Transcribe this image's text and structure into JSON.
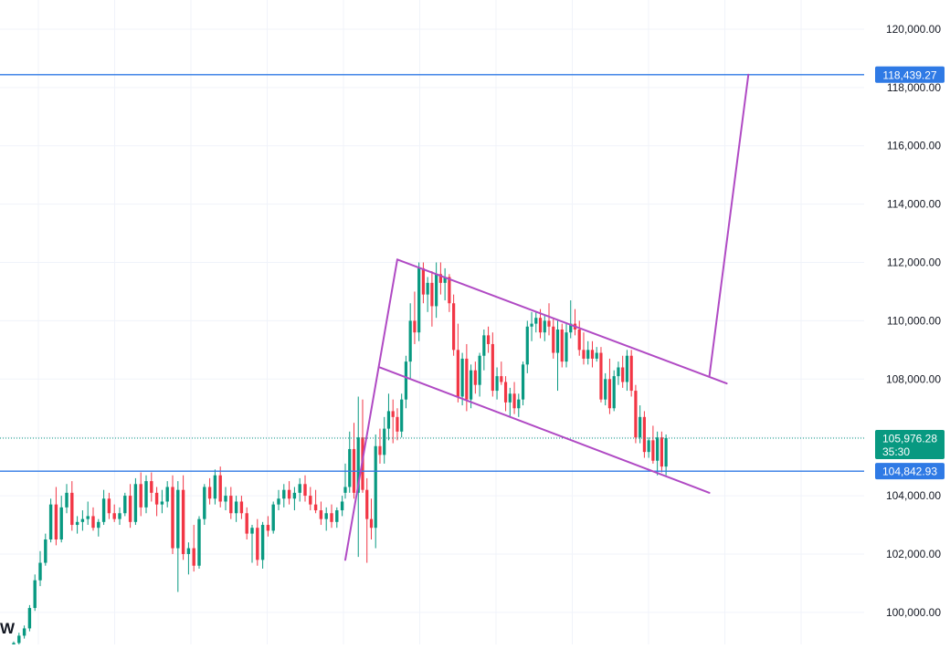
{
  "chart_data": {
    "type": "candlestick",
    "title": "",
    "ylim": [
      98900,
      121000
    ],
    "y_ticks": [
      100000,
      102000,
      104000,
      106000,
      108000,
      110000,
      112000,
      114000,
      116000,
      118000,
      120000
    ],
    "y_tick_labels": [
      "100,000.00",
      "102,000.00",
      "104,000.00",
      "106,000.00",
      "108,000.00",
      "110,000.00",
      "112,000.00",
      "114,000.00",
      "116,000.00",
      "118,000.00",
      "120,000.00"
    ],
    "grid": true,
    "colors": {
      "up": "#089981",
      "down": "#f23645",
      "hline": "#2f7ae5",
      "pattern": "#b04ac4",
      "grid": "#f0f3fa",
      "axis_text": "#131722",
      "last_price": "#089981"
    },
    "horizontal_lines": [
      {
        "price": 118439.27,
        "label": "118,439.27"
      },
      {
        "price": 104842.93,
        "label": "104,842.93"
      }
    ],
    "last_price": {
      "price": 105976.28,
      "label": "105,976.28",
      "countdown": "35:30"
    },
    "drawing": {
      "pole": [
        {
          "bar": 0,
          "price": 101800
        },
        {
          "bar": 12,
          "price": 112100
        }
      ],
      "upper_channel": [
        {
          "bar": 12,
          "price": 112100
        },
        {
          "bar": 88,
          "price": 107850
        }
      ],
      "lower_channel": [
        {
          "bar": 8,
          "price": 108400
        },
        {
          "bar": 84,
          "price": 104100
        }
      ],
      "target": [
        {
          "bar": 84,
          "price": 108100
        },
        {
          "bar": 93,
          "price": 118439.27
        }
      ]
    },
    "bars_history": [
      [
        98750,
        99000,
        98650,
        98950
      ],
      [
        98950,
        99300,
        98850,
        99200
      ],
      [
        99200,
        99550,
        99100,
        99450
      ],
      [
        99450,
        100250,
        99350,
        100150
      ],
      [
        100150,
        101300,
        100050,
        101100
      ],
      [
        101100,
        102100,
        100900,
        101700
      ],
      [
        101700,
        102700,
        101600,
        102500
      ],
      [
        102500,
        103900,
        102400,
        103700
      ],
      [
        103700,
        104300,
        102300,
        102500
      ],
      [
        102500,
        104000,
        102400,
        103600
      ],
      [
        103600,
        104400,
        103400,
        104100
      ],
      [
        104100,
        104500,
        102800,
        103000
      ],
      [
        103000,
        103300,
        102700,
        103100
      ],
      [
        103100,
        103500,
        102800,
        103200
      ],
      [
        103200,
        103800,
        103000,
        103300
      ],
      [
        103300,
        103600,
        102800,
        102900
      ],
      [
        102900,
        103200,
        102600,
        103100
      ],
      [
        103100,
        104200,
        103000,
        103900
      ],
      [
        103900,
        104100,
        103200,
        103400
      ],
      [
        103400,
        103700,
        103100,
        103200
      ],
      [
        103200,
        103600,
        103000,
        103400
      ],
      [
        103400,
        104100,
        103300,
        104000
      ],
      [
        104000,
        104400,
        102900,
        103100
      ],
      [
        103100,
        104600,
        103000,
        104400
      ],
      [
        104400,
        104800,
        103300,
        103600
      ],
      [
        103600,
        104700,
        103400,
        104500
      ],
      [
        104500,
        104800,
        103800,
        104100
      ],
      [
        104100,
        104300,
        103300,
        103700
      ],
      [
        103700,
        104200,
        103400,
        103800
      ],
      [
        103800,
        104500,
        103600,
        104300
      ],
      [
        104300,
        104700,
        102000,
        102200
      ],
      [
        102200,
        104500,
        100700,
        104200
      ],
      [
        104200,
        104700,
        101800,
        102000
      ],
      [
        102000,
        102400,
        101300,
        102200
      ],
      [
        102200,
        103000,
        101400,
        101600
      ],
      [
        101600,
        103300,
        101500,
        103200
      ],
      [
        103200,
        104400,
        103000,
        104300
      ],
      [
        104300,
        104600,
        103700,
        103900
      ],
      [
        103900,
        104900,
        103700,
        104700
      ],
      [
        104700,
        105000,
        103600,
        103800
      ],
      [
        103800,
        104300,
        103500,
        104000
      ],
      [
        104000,
        104300,
        103200,
        103400
      ],
      [
        103400,
        104000,
        103100,
        103800
      ],
      [
        103800,
        104000,
        103200,
        103400
      ],
      [
        103400,
        103600,
        102500,
        102700
      ],
      [
        102700,
        103000,
        101700,
        102900
      ],
      [
        102900,
        103200,
        101600,
        101800
      ],
      [
        101800,
        103100,
        101500,
        103000
      ],
      [
        103000,
        103300,
        102600,
        102800
      ],
      [
        102800,
        103800,
        102700,
        103700
      ],
      [
        103700,
        104200,
        103500,
        103900
      ],
      [
        103900,
        104400,
        103600,
        104200
      ],
      [
        104200,
        104500,
        103700,
        103900
      ],
      [
        103900,
        104300,
        103500,
        104100
      ],
      [
        104100,
        104600,
        103800,
        104400
      ],
      [
        104400,
        104700,
        103800,
        104000
      ],
      [
        104000,
        104300,
        103500,
        103700
      ],
      [
        103700,
        104200,
        103400,
        103500
      ],
      [
        103500,
        103800,
        103000,
        103200
      ],
      [
        103200,
        103600,
        102800,
        103400
      ],
      [
        103400,
        103700,
        102900,
        103100
      ],
      [
        103100,
        103600,
        102900,
        103500
      ],
      [
        103500,
        104000,
        103300,
        103800
      ]
    ],
    "bars": [
      [
        104100,
        105100,
        103900,
        104300
      ],
      [
        104300,
        106200,
        104100,
        105600
      ],
      [
        105600,
        106500,
        103900,
        104100
      ],
      [
        104100,
        107400,
        101900,
        106000
      ],
      [
        106000,
        107300,
        104100,
        104200
      ],
      [
        104200,
        104600,
        101700,
        103200
      ],
      [
        103200,
        103900,
        102500,
        102900
      ],
      [
        102900,
        106100,
        102200,
        105700
      ],
      [
        105700,
        106300,
        105100,
        105400
      ],
      [
        105400,
        106700,
        105100,
        106300
      ],
      [
        106300,
        107500,
        105900,
        106900
      ],
      [
        106900,
        107300,
        105800,
        106700
      ],
      [
        106700,
        107000,
        105900,
        106200
      ],
      [
        106200,
        107500,
        106000,
        107300
      ],
      [
        107300,
        108800,
        107000,
        108600
      ],
      [
        108600,
        110600,
        108000,
        110000
      ],
      [
        110000,
        111000,
        109200,
        109600
      ],
      [
        109600,
        112000,
        109300,
        111800
      ],
      [
        111800,
        112000,
        110600,
        110900
      ],
      [
        110900,
        111500,
        110300,
        111300
      ],
      [
        111300,
        111700,
        109800,
        110500
      ],
      [
        110500,
        112000,
        110100,
        111600
      ],
      [
        111600,
        112000,
        110900,
        111300
      ],
      [
        111300,
        111800,
        110700,
        111500
      ],
      [
        111500,
        111600,
        110300,
        110600
      ],
      [
        110600,
        110900,
        108800,
        109000
      ],
      [
        109000,
        109900,
        107200,
        107400
      ],
      [
        107400,
        108900,
        107100,
        108700
      ],
      [
        108700,
        109200,
        106900,
        107300
      ],
      [
        107300,
        108500,
        107000,
        108300
      ],
      [
        108300,
        108600,
        107500,
        107800
      ],
      [
        107800,
        108900,
        107400,
        108800
      ],
      [
        108800,
        109700,
        108300,
        109500
      ],
      [
        109500,
        109800,
        108900,
        109200
      ],
      [
        109200,
        109600,
        107400,
        107600
      ],
      [
        107600,
        108400,
        107300,
        108100
      ],
      [
        108100,
        108600,
        107800,
        107900
      ],
      [
        107900,
        108100,
        106900,
        107200
      ],
      [
        107200,
        107700,
        106700,
        107500
      ],
      [
        107500,
        107900,
        106800,
        107000
      ],
      [
        107000,
        107500,
        106700,
        107300
      ],
      [
        107300,
        108600,
        107100,
        108500
      ],
      [
        108500,
        110000,
        108200,
        109800
      ],
      [
        109800,
        110300,
        109300,
        109900
      ],
      [
        109900,
        110300,
        109600,
        110100
      ],
      [
        110100,
        110400,
        109400,
        109600
      ],
      [
        109600,
        110200,
        109300,
        110000
      ],
      [
        110000,
        110600,
        109500,
        109800
      ],
      [
        109800,
        110100,
        108700,
        108900
      ],
      [
        108900,
        110000,
        107600,
        109700
      ],
      [
        109700,
        109900,
        108400,
        108600
      ],
      [
        108600,
        109900,
        108400,
        109600
      ],
      [
        109600,
        110700,
        109400,
        109900
      ],
      [
        109900,
        110400,
        109500,
        109700
      ],
      [
        109700,
        110000,
        108800,
        109000
      ],
      [
        109000,
        109600,
        108500,
        108700
      ],
      [
        108700,
        109300,
        108500,
        109000
      ],
      [
        109000,
        109300,
        108400,
        108700
      ],
      [
        108700,
        109100,
        108600,
        108900
      ],
      [
        108900,
        109100,
        107200,
        107300
      ],
      [
        107300,
        108200,
        107100,
        108000
      ],
      [
        108000,
        108700,
        106800,
        107000
      ],
      [
        107000,
        108300,
        106900,
        108100
      ],
      [
        108100,
        108600,
        107800,
        108400
      ],
      [
        108400,
        108800,
        107700,
        107900
      ],
      [
        107900,
        109000,
        107600,
        108800
      ],
      [
        108800,
        109000,
        107400,
        107600
      ],
      [
        107600,
        107800,
        105800,
        106000
      ],
      [
        106000,
        107100,
        105800,
        106700
      ],
      [
        106700,
        106900,
        105300,
        105500
      ],
      [
        105500,
        106000,
        105300,
        105900
      ],
      [
        105900,
        106400,
        105100,
        105200
      ],
      [
        105200,
        106200,
        104700,
        106000
      ],
      [
        106000,
        106200,
        104800,
        105000
      ],
      [
        105000,
        106100,
        104700,
        105976.28
      ]
    ]
  }
}
